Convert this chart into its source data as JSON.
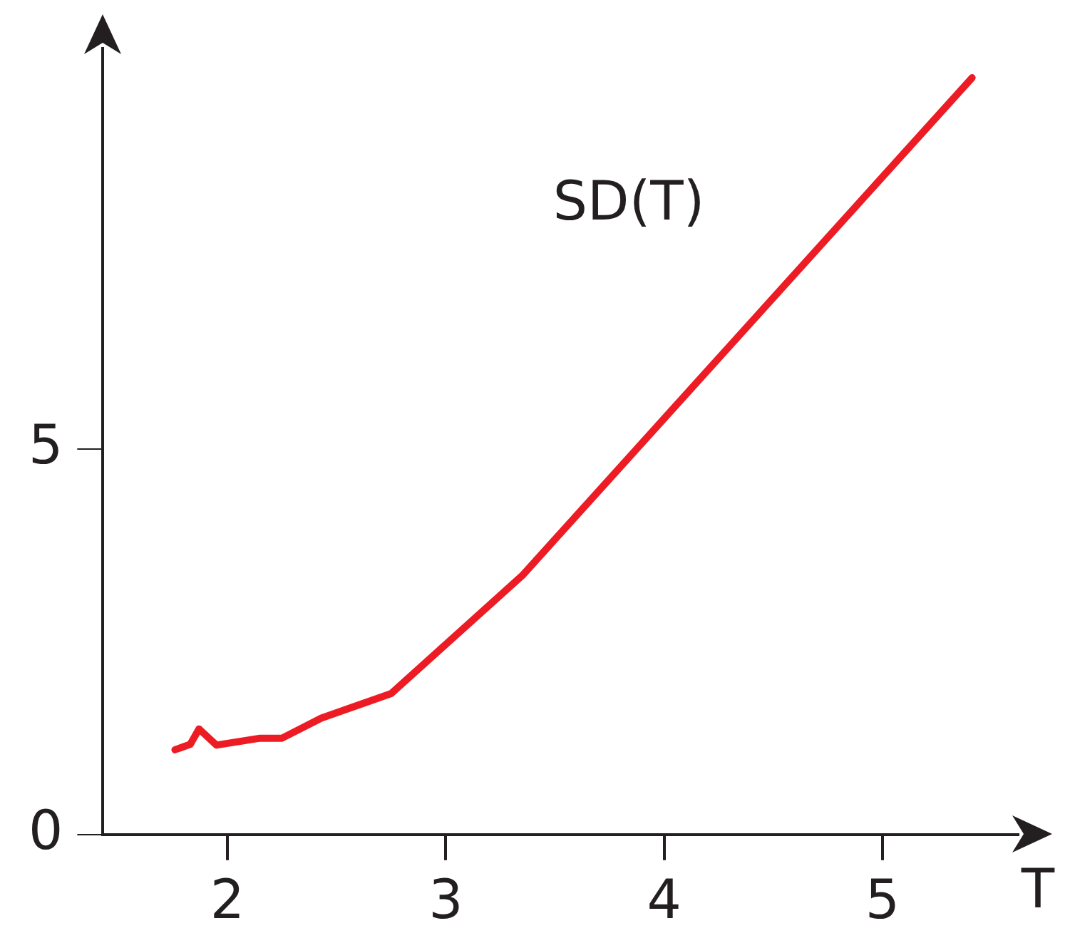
{
  "chart_data": {
    "type": "line",
    "xlabel": "T",
    "x": [
      1.76,
      1.83,
      1.87,
      1.95,
      2.15,
      2.25,
      2.43,
      2.75,
      3.35,
      5.41
    ],
    "series": [
      {
        "name": "SD(T)",
        "color": "#ed1c24",
        "values": [
          1.1,
          1.17,
          1.37,
          1.16,
          1.25,
          1.25,
          1.51,
          1.83,
          3.36,
          9.82
        ]
      }
    ],
    "xlim": [
      1.43,
      5.62
    ],
    "ylim": [
      0,
      10.2
    ],
    "xticks": [
      2,
      3,
      4,
      5
    ],
    "yticks": [
      0,
      5
    ],
    "grid": false,
    "legend": false,
    "marker": "none",
    "line_style": "solid"
  }
}
